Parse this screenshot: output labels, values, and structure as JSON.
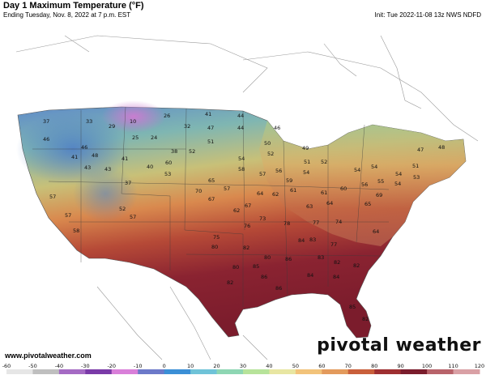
{
  "header": {
    "title": "Day 1 Maximum Temperature (°F)",
    "subtitle": "Ending Tuesday, Nov. 8, 2022 at 7 p.m. EST",
    "init": "Init: Tue 2022-11-08 13z NWS NDFD"
  },
  "footer": {
    "site": "www.pivotalweather.com",
    "brand": "pivotal weather"
  },
  "legend": {
    "ticks": [
      "-60",
      "-50",
      "-40",
      "-30",
      "-20",
      "-10",
      "0",
      "10",
      "20",
      "30",
      "40",
      "50",
      "60",
      "70",
      "80",
      "90",
      "100",
      "110",
      "120"
    ],
    "colors": [
      "#e6e6e6",
      "#bfbfbf",
      "#a56bc4",
      "#7a3aa8",
      "#d97fd9",
      "#6c79c9",
      "#3b8fd6",
      "#6fc3d8",
      "#8ed6b3",
      "#b7e39a",
      "#e8e6a2",
      "#f2c37a",
      "#e39a5c",
      "#c95f3b",
      "#9e2f31",
      "#7a1c2c",
      "#b8636a",
      "#d9a0a5"
    ]
  },
  "map_labels": [
    {
      "id": "t1",
      "text": "26"
    },
    {
      "id": "t2",
      "text": "10"
    },
    {
      "id": "t3",
      "text": "41"
    },
    {
      "id": "t4",
      "text": "44"
    },
    {
      "id": "t5",
      "text": "32"
    },
    {
      "id": "t6",
      "text": "47"
    },
    {
      "id": "t7",
      "text": "44"
    },
    {
      "id": "t8",
      "text": "46"
    },
    {
      "id": "t9",
      "text": "33"
    },
    {
      "id": "t10",
      "text": "29"
    },
    {
      "id": "t11",
      "text": "25"
    },
    {
      "id": "t12",
      "text": "24"
    },
    {
      "id": "t13",
      "text": "37"
    },
    {
      "id": "t14",
      "text": "46"
    },
    {
      "id": "t15",
      "text": "51"
    },
    {
      "id": "t16",
      "text": "50"
    },
    {
      "id": "t17",
      "text": "46"
    },
    {
      "id": "t18",
      "text": "41"
    },
    {
      "id": "t19",
      "text": "48"
    },
    {
      "id": "t20",
      "text": "38"
    },
    {
      "id": "t21",
      "text": "52"
    },
    {
      "id": "t22",
      "text": "54"
    },
    {
      "id": "t23",
      "text": "52"
    },
    {
      "id": "t24",
      "text": "49"
    },
    {
      "id": "t25",
      "text": "43"
    },
    {
      "id": "t26",
      "text": "43"
    },
    {
      "id": "t27",
      "text": "41"
    },
    {
      "id": "t28",
      "text": "40"
    },
    {
      "id": "t29",
      "text": "60"
    },
    {
      "id": "t30",
      "text": "58"
    },
    {
      "id": "t31",
      "text": "57"
    },
    {
      "id": "t32",
      "text": "56"
    },
    {
      "id": "t33",
      "text": "51"
    },
    {
      "id": "t34",
      "text": "52"
    },
    {
      "id": "t35",
      "text": "48"
    },
    {
      "id": "t36",
      "text": "47"
    },
    {
      "id": "t37",
      "text": "37"
    },
    {
      "id": "t38",
      "text": "53"
    },
    {
      "id": "t39",
      "text": "65"
    },
    {
      "id": "t40",
      "text": "59"
    },
    {
      "id": "t41",
      "text": "54"
    },
    {
      "id": "t42",
      "text": "55"
    },
    {
      "id": "t43",
      "text": "54"
    },
    {
      "id": "t44",
      "text": "51"
    },
    {
      "id": "t45",
      "text": "54"
    },
    {
      "id": "t46",
      "text": "54"
    },
    {
      "id": "t47",
      "text": "57"
    },
    {
      "id": "t48",
      "text": "64"
    },
    {
      "id": "t49",
      "text": "62"
    },
    {
      "id": "t50",
      "text": "61"
    },
    {
      "id": "t51",
      "text": "61"
    },
    {
      "id": "t52",
      "text": "60"
    },
    {
      "id": "t53",
      "text": "56"
    },
    {
      "id": "t54",
      "text": "54"
    },
    {
      "id": "t55",
      "text": "53"
    },
    {
      "id": "t56",
      "text": "57"
    },
    {
      "id": "t57",
      "text": "70"
    },
    {
      "id": "t58",
      "text": "67"
    },
    {
      "id": "t59",
      "text": "62"
    },
    {
      "id": "t60",
      "text": "67"
    },
    {
      "id": "t61",
      "text": "63"
    },
    {
      "id": "t62",
      "text": "64"
    },
    {
      "id": "t63",
      "text": "65"
    },
    {
      "id": "t64",
      "text": "69"
    },
    {
      "id": "t65",
      "text": "52"
    },
    {
      "id": "t66",
      "text": "57"
    },
    {
      "id": "t67",
      "text": "57"
    },
    {
      "id": "t68",
      "text": "58"
    },
    {
      "id": "t69",
      "text": "76"
    },
    {
      "id": "t70",
      "text": "73"
    },
    {
      "id": "t71",
      "text": "75"
    },
    {
      "id": "t72",
      "text": "78"
    },
    {
      "id": "t73",
      "text": "77"
    },
    {
      "id": "t74",
      "text": "74"
    },
    {
      "id": "t75",
      "text": "64"
    },
    {
      "id": "t76",
      "text": "80"
    },
    {
      "id": "t77",
      "text": "82"
    },
    {
      "id": "t78",
      "text": "84"
    },
    {
      "id": "t79",
      "text": "83"
    },
    {
      "id": "t80",
      "text": "77"
    },
    {
      "id": "t81",
      "text": "80"
    },
    {
      "id": "t82",
      "text": "80"
    },
    {
      "id": "t83",
      "text": "85"
    },
    {
      "id": "t84",
      "text": "86"
    },
    {
      "id": "t85",
      "text": "83"
    },
    {
      "id": "t86",
      "text": "82"
    },
    {
      "id": "t87",
      "text": "82"
    },
    {
      "id": "t88",
      "text": "86"
    },
    {
      "id": "t89",
      "text": "84"
    },
    {
      "id": "t90",
      "text": "84"
    },
    {
      "id": "t91",
      "text": "86"
    },
    {
      "id": "t92",
      "text": "82"
    },
    {
      "id": "t93",
      "text": "85"
    },
    {
      "id": "t94",
      "text": "82"
    }
  ]
}
